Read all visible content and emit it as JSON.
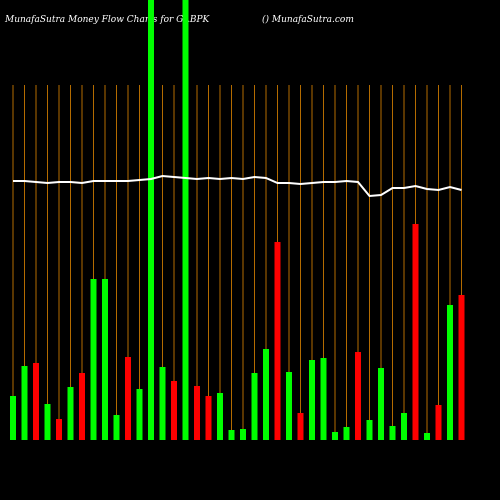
{
  "chart_data": {
    "type": "bar",
    "title": "MunafaSutra  Money Flow  Charts for GABPK",
    "subtitle": "() MunafaSutra.com",
    "categories": [
      null,
      null,
      null,
      null,
      null,
      null,
      null,
      null,
      null,
      null,
      null,
      null,
      null,
      null,
      null,
      null,
      null,
      null,
      null,
      null,
      null,
      null,
      null,
      null,
      null,
      null,
      null,
      null,
      null,
      null,
      null,
      null,
      null,
      null,
      null,
      null,
      null,
      null,
      null,
      null
    ],
    "values": [
      44,
      74,
      77,
      36,
      21,
      53,
      67,
      161,
      161,
      25,
      83,
      51,
      440,
      73,
      59,
      440,
      54,
      44,
      47,
      10,
      11,
      67,
      91,
      198,
      68,
      27,
      80,
      82,
      8,
      13,
      88,
      20,
      72,
      14,
      27,
      216,
      7,
      35,
      135,
      145
    ],
    "colors": [
      "#00ff00",
      "#00ff00",
      "#ff0000",
      "#00ff00",
      "#ff0000",
      "#00ff00",
      "#ff0000",
      "#00ff00",
      "#00ff00",
      "#00ff00",
      "#ff0000",
      "#00ff00",
      "#00ff00",
      "#00ff00",
      "#ff0000",
      "#00ff00",
      "#ff0000",
      "#ff0000",
      "#00ff00",
      "#00ff00",
      "#00ff00",
      "#00ff00",
      "#00ff00",
      "#ff0000",
      "#00ff00",
      "#ff0000",
      "#00ff00",
      "#00ff00",
      "#00ff00",
      "#00ff00",
      "#ff0000",
      "#00ff00",
      "#00ff00",
      "#00ff00",
      "#00ff00",
      "#ff0000",
      "#00ff00",
      "#ff0000",
      "#00ff00",
      "#ff0000"
    ],
    "line": {
      "color": "#ffffff",
      "values": [
        259,
        259,
        258,
        257,
        258,
        258,
        257,
        259,
        259,
        259,
        259,
        260,
        261,
        264,
        263,
        262,
        261,
        262,
        261,
        262,
        261,
        263,
        262,
        257,
        257,
        256,
        257,
        258,
        258,
        259,
        258,
        244,
        245,
        252,
        252,
        254,
        251,
        250,
        253,
        250
      ]
    },
    "ylim": [
      0,
      440
    ],
    "grid_color": "#b36b00"
  }
}
